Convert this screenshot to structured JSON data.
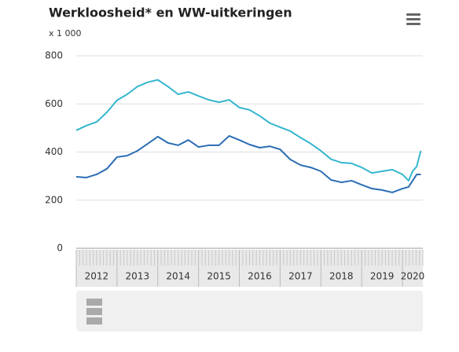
{
  "chart_data": {
    "type": "line",
    "title": "Werkloosheid* en WW-uitkeringen",
    "ylabel": "x 1 000",
    "x": [
      2012.0,
      2012.25,
      2012.5,
      2012.75,
      2013.0,
      2013.25,
      2013.5,
      2013.75,
      2014.0,
      2014.25,
      2014.5,
      2014.75,
      2015.0,
      2015.25,
      2015.5,
      2015.75,
      2016.0,
      2016.25,
      2016.5,
      2016.75,
      2017.0,
      2017.25,
      2017.5,
      2017.75,
      2018.0,
      2018.25,
      2018.5,
      2018.75,
      2019.0,
      2019.25,
      2019.5,
      2019.75,
      2020.0,
      2020.15,
      2020.25,
      2020.35,
      2020.45
    ],
    "series": [
      {
        "color": "#35b6cf",
        "values": [
          490,
          510,
          525,
          565,
          615,
          640,
          672,
          690,
          700,
          672,
          640,
          650,
          633,
          617,
          607,
          617,
          585,
          575,
          550,
          520,
          503,
          487,
          460,
          435,
          405,
          370,
          356,
          353,
          336,
          313,
          320,
          327,
          307,
          281,
          320,
          340,
          405
        ]
      },
      {
        "color": "#2a6db5",
        "values": [
          297,
          294,
          307,
          330,
          379,
          385,
          405,
          434,
          464,
          438,
          428,
          450,
          421,
          428,
          428,
          467,
          450,
          431,
          418,
          424,
          411,
          369,
          346,
          336,
          320,
          284,
          274,
          281,
          264,
          248,
          242,
          232,
          248,
          255,
          281,
          307,
          307
        ]
      }
    ],
    "xlim": [
      2012,
      2020.5
    ],
    "xticks": [
      {
        "value": 2012.5,
        "label": "2012"
      },
      {
        "value": 2013.5,
        "label": "2013"
      },
      {
        "value": 2014.5,
        "label": "2014"
      },
      {
        "value": 2015.5,
        "label": "2015"
      },
      {
        "value": 2016.5,
        "label": "2016"
      },
      {
        "value": 2017.5,
        "label": "2017"
      },
      {
        "value": 2018.5,
        "label": "2018"
      },
      {
        "value": 2019.5,
        "label": "2019"
      },
      {
        "value": 2020.25,
        "label": "2020"
      }
    ],
    "ylim": [
      0,
      800
    ],
    "yticks": [
      0,
      200,
      400,
      600,
      800
    ],
    "grid": true
  }
}
